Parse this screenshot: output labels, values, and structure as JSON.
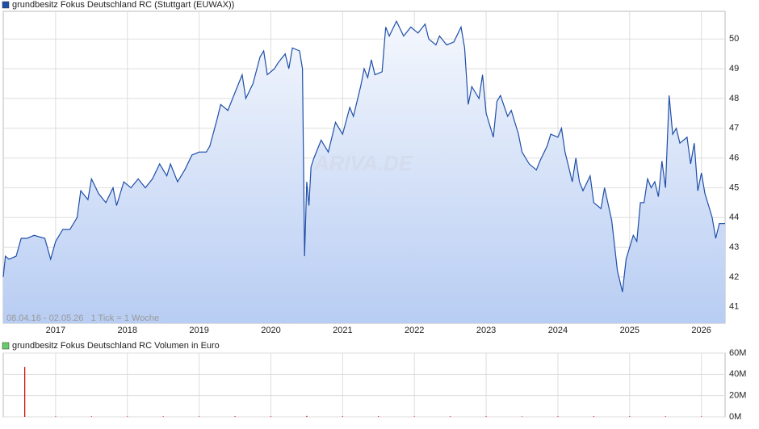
{
  "chart_data": [
    {
      "type": "area",
      "annotation": "08.04.16 - 02.05.26   1 Tick = 1 Woche",
      "watermark": "ARIVA.DE",
      "xlim": [
        2016.27,
        2026.33
      ],
      "xticks": [
        2017,
        2018,
        2019,
        2020,
        2021,
        2022,
        2023,
        2024,
        2025,
        2026
      ],
      "ylim": [
        40.45,
        50.93
      ],
      "yticks": [
        41,
        42,
        43,
        44,
        45,
        46,
        47,
        48,
        49,
        50
      ],
      "grid": true,
      "series": [
        {
          "name": "grundbesitz Fokus Deutschland RC (Stuttgart (EUWAX))",
          "color": "#1f4fa8",
          "x": [
            2016.27,
            2016.3,
            2016.35,
            2016.45,
            2016.52,
            2016.6,
            2016.7,
            2016.85,
            2016.93,
            2017.0,
            2017.1,
            2017.2,
            2017.3,
            2017.35,
            2017.45,
            2017.5,
            2017.6,
            2017.7,
            2017.8,
            2017.85,
            2017.95,
            2018.05,
            2018.15,
            2018.25,
            2018.35,
            2018.45,
            2018.55,
            2018.6,
            2018.7,
            2018.8,
            2018.9,
            2019.0,
            2019.1,
            2019.15,
            2019.25,
            2019.3,
            2019.4,
            2019.5,
            2019.6,
            2019.65,
            2019.75,
            2019.85,
            2019.9,
            2019.95,
            2020.05,
            2020.1,
            2020.2,
            2020.25,
            2020.3,
            2020.4,
            2020.44,
            2020.47,
            2020.5,
            2020.53,
            2020.56,
            2020.6,
            2020.7,
            2020.8,
            2020.9,
            2021.0,
            2021.1,
            2021.15,
            2021.25,
            2021.3,
            2021.35,
            2021.4,
            2021.45,
            2021.55,
            2021.6,
            2021.65,
            2021.75,
            2021.85,
            2021.95,
            2022.05,
            2022.15,
            2022.2,
            2022.3,
            2022.35,
            2022.45,
            2022.55,
            2022.65,
            2022.7,
            2022.75,
            2022.8,
            2022.9,
            2022.95,
            2023.0,
            2023.1,
            2023.15,
            2023.2,
            2023.3,
            2023.35,
            2023.45,
            2023.5,
            2023.6,
            2023.7,
            2023.75,
            2023.85,
            2023.9,
            2024.0,
            2024.05,
            2024.1,
            2024.15,
            2024.2,
            2024.25,
            2024.3,
            2024.35,
            2024.45,
            2024.5,
            2024.6,
            2024.65,
            2024.75,
            2024.83,
            2024.9,
            2024.95,
            2025.0,
            2025.05,
            2025.1,
            2025.15,
            2025.2,
            2025.25,
            2025.3,
            2025.35,
            2025.4,
            2025.45,
            2025.5,
            2025.55,
            2025.6,
            2025.65,
            2025.7,
            2025.8,
            2025.85,
            2025.9,
            2025.95,
            2026.0,
            2026.05,
            2026.1,
            2026.15,
            2026.2,
            2026.25,
            2026.33
          ],
          "values": [
            42.0,
            42.7,
            42.6,
            42.7,
            43.3,
            43.3,
            43.4,
            43.3,
            42.6,
            43.2,
            43.6,
            43.6,
            44.0,
            44.9,
            44.6,
            45.3,
            44.8,
            44.5,
            45.0,
            44.4,
            45.2,
            45.0,
            45.3,
            45.0,
            45.3,
            45.8,
            45.4,
            45.8,
            45.2,
            45.6,
            46.1,
            46.2,
            46.2,
            46.4,
            47.3,
            47.8,
            47.6,
            48.2,
            48.8,
            48.0,
            48.5,
            49.4,
            49.6,
            48.8,
            49.0,
            49.2,
            49.5,
            49.0,
            49.7,
            49.6,
            49.0,
            42.7,
            45.2,
            44.4,
            45.7,
            46.0,
            46.6,
            46.2,
            47.2,
            46.8,
            47.7,
            47.4,
            48.4,
            49.0,
            48.7,
            49.3,
            48.8,
            48.9,
            50.4,
            50.1,
            50.6,
            50.1,
            50.4,
            50.2,
            50.5,
            50.0,
            49.8,
            50.1,
            49.8,
            49.9,
            50.4,
            49.7,
            47.8,
            48.4,
            48.0,
            48.8,
            47.5,
            46.7,
            47.9,
            48.1,
            47.4,
            47.6,
            46.8,
            46.2,
            45.8,
            45.6,
            45.9,
            46.4,
            46.8,
            46.7,
            47.0,
            46.2,
            45.7,
            45.2,
            46.0,
            45.2,
            44.9,
            45.4,
            44.5,
            44.3,
            45.0,
            43.9,
            42.2,
            41.5,
            42.6,
            43.0,
            43.4,
            43.2,
            44.5,
            44.5,
            45.3,
            45.0,
            45.2,
            44.7,
            45.9,
            45.0,
            48.1,
            46.8,
            47.0,
            46.5,
            46.7,
            45.8,
            46.5,
            44.9,
            45.5,
            44.8,
            44.4,
            44.0,
            43.3,
            43.8,
            43.8
          ]
        }
      ]
    },
    {
      "type": "bar",
      "xlim": [
        2016.27,
        2026.33
      ],
      "ylim": [
        0,
        60000000
      ],
      "yticks": [
        {
          "value": 0,
          "label": "0M"
        },
        {
          "value": 20000000,
          "label": "20M"
        },
        {
          "value": 40000000,
          "label": "40M"
        },
        {
          "value": 60000000,
          "label": "60M"
        }
      ],
      "grid": true,
      "series": [
        {
          "name": "grundbesitz Fokus Deutschland RC Volumen in Euro",
          "color": "#cc0000",
          "x": [
            2016.57,
            2017.0,
            2017.5,
            2018.0,
            2018.5,
            2019.0,
            2019.5,
            2020.0,
            2020.5,
            2021.0,
            2021.5,
            2022.0,
            2022.5,
            2023.0,
            2023.5,
            2024.0,
            2024.5,
            2025.0,
            2025.5,
            2026.0
          ],
          "values": [
            47000000,
            400000,
            500000,
            400000,
            500000,
            400000,
            600000,
            500000,
            900000,
            500000,
            600000,
            400000,
            500000,
            500000,
            400000,
            500000,
            600000,
            500000,
            500000,
            400000
          ]
        }
      ]
    }
  ]
}
